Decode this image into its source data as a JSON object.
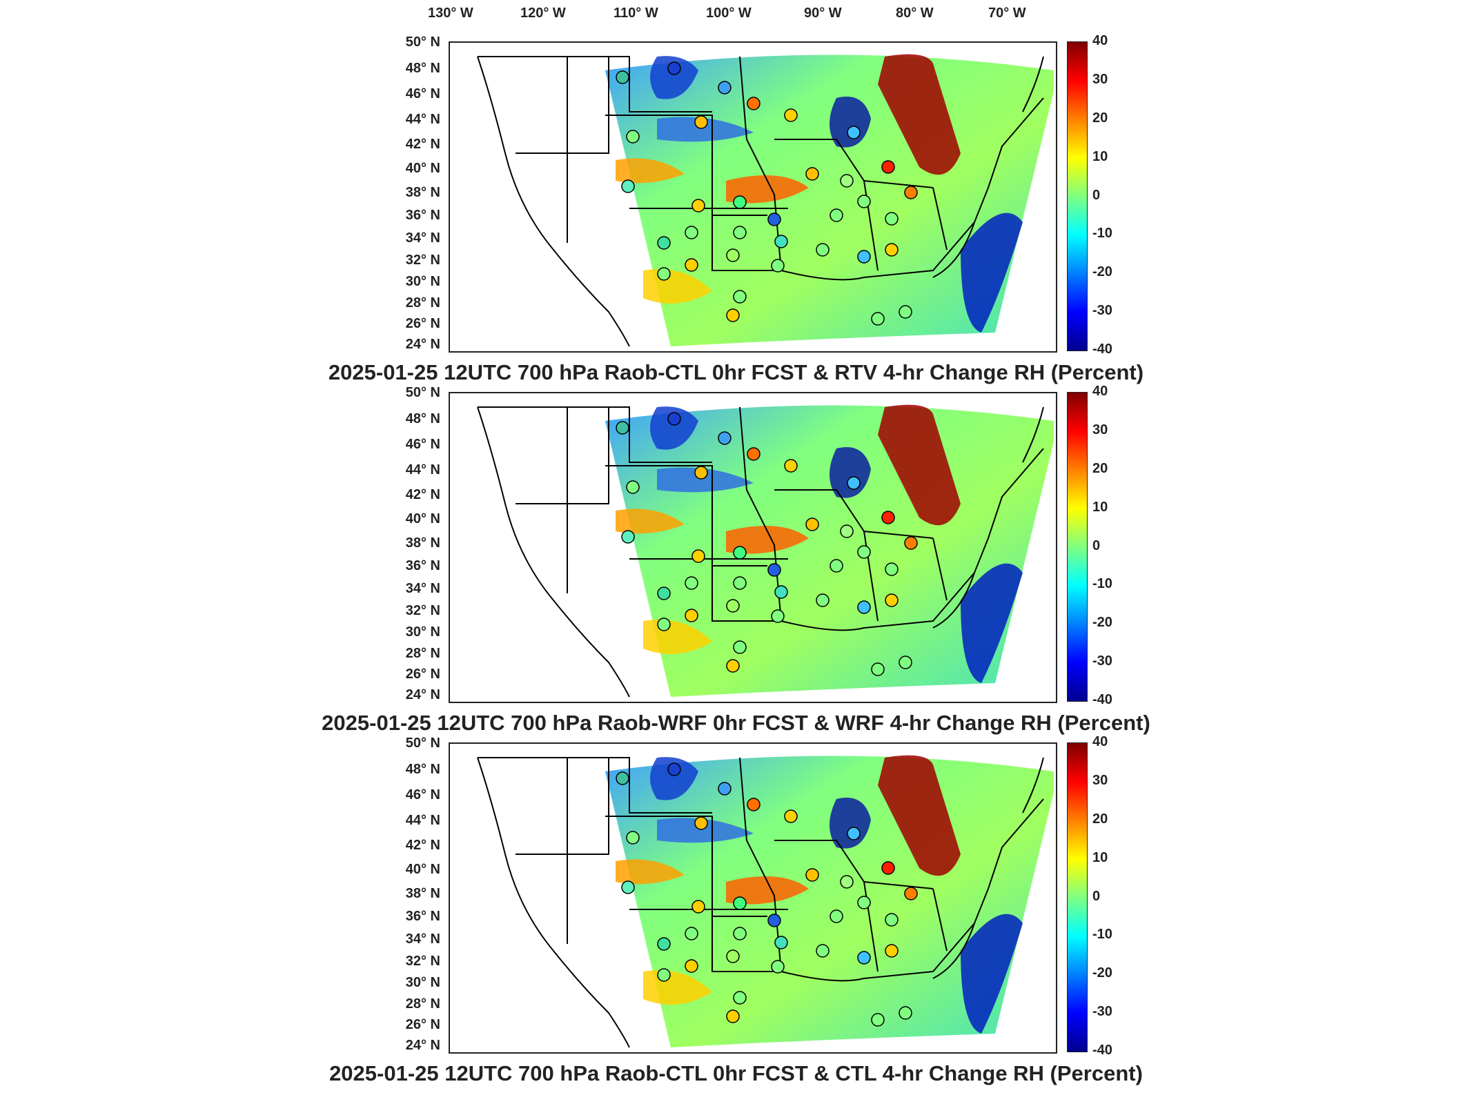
{
  "lon_labels": [
    "130° W",
    "120° W",
    "110° W",
    "100° W",
    "90° W",
    "80° W",
    "70° W"
  ],
  "lat_labels": [
    "50° N",
    "48° N",
    "46° N",
    "44° N",
    "42° N",
    "40° N",
    "38° N",
    "36° N",
    "34° N",
    "32° N",
    "30° N",
    "28° N",
    "26° N",
    "24° N"
  ],
  "colorbar": {
    "ticks": [
      "40",
      "30",
      "20",
      "10",
      "0",
      "-10",
      "-20",
      "-30",
      "-40"
    ],
    "colors": [
      "#7f0000",
      "#ff0000",
      "#ff8000",
      "#ffff00",
      "#80ff80",
      "#00ffff",
      "#0080ff",
      "#0000ff",
      "#00008f"
    ]
  },
  "panels": [
    {
      "title": "2025-01-25 12UTC 700 hPa Raob-CTL 0hr FCST & RTV 4-hr Change RH (Percent)"
    },
    {
      "title": "2025-01-25 12UTC 700 hPa Raob-WRF 0hr FCST & WRF 4-hr Change RH (Percent)"
    },
    {
      "title": "2025-01-25 12UTC 700 hPa Raob-CTL 0hr FCST & CTL 4-hr Change RH (Percent)"
    }
  ],
  "map": {
    "domain_lon": [
      -136,
      -68
    ],
    "domain_lat": [
      24,
      50
    ],
    "colorbar_range": [
      -40,
      40
    ],
    "variable": "RH change (%)"
  }
}
